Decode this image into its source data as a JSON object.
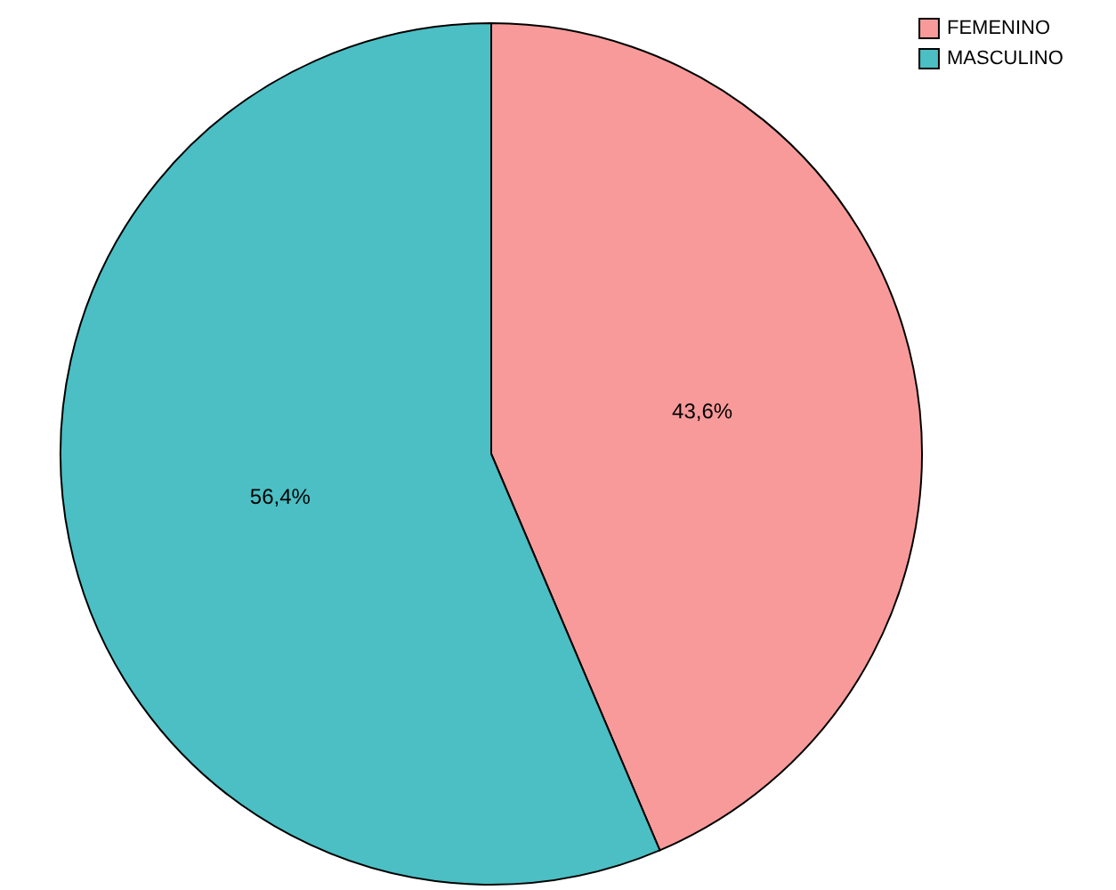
{
  "chart_data": {
    "type": "pie",
    "categories": [
      "FEMENINO",
      "MASCULINO"
    ],
    "values": [
      43.6,
      56.4
    ],
    "colors": [
      "#f99a9a",
      "#4bbfc4"
    ],
    "value_labels": [
      "43,6%",
      "56,4%"
    ],
    "legend": "top right"
  }
}
